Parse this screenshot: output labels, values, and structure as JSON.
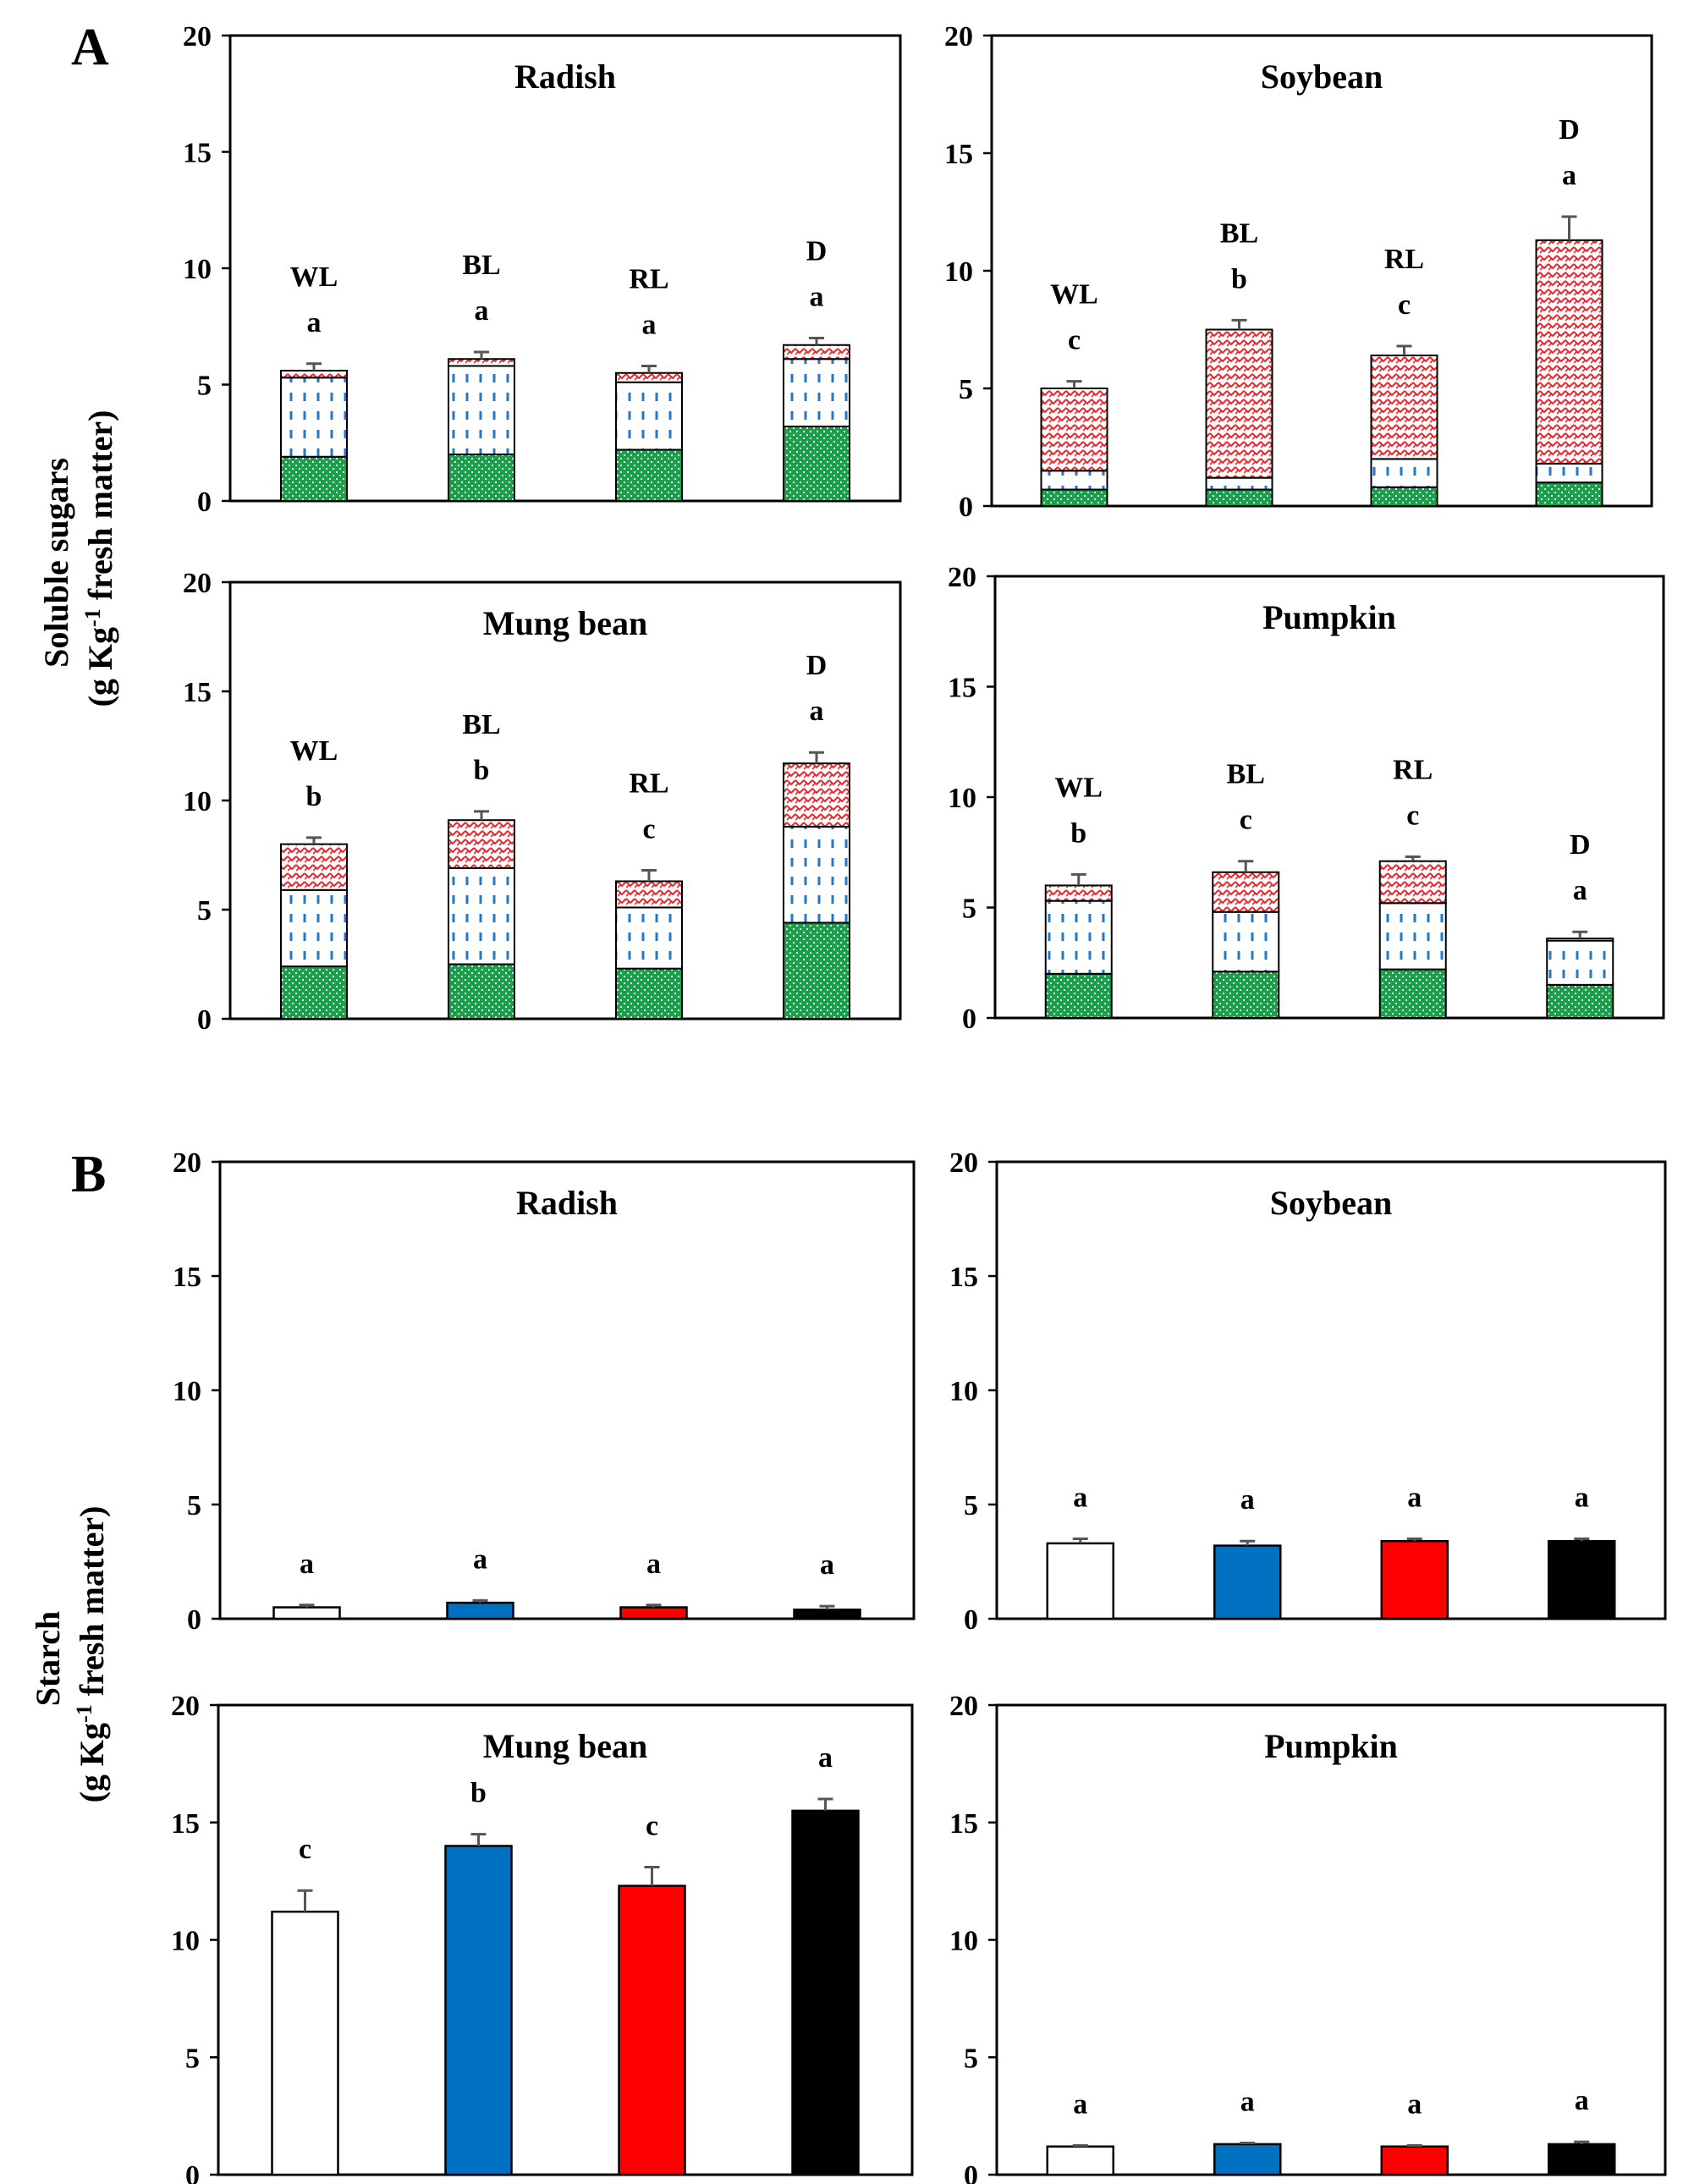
{
  "figure": {
    "panel_a": "A",
    "panel_b": "B",
    "ylabel_a": [
      "Soluble sugars",
      "(g Kg",
      "-1",
      " fresh matter)"
    ],
    "ylabel_b": [
      "Starch",
      "(g Kg",
      "-1",
      " fresh matter)"
    ]
  },
  "colors": {
    "green": "#1aa04a",
    "blue_dash": "#1f78c8",
    "red_pattern": "#e8262c",
    "WL": "#ffffff",
    "BL": "#0070c0",
    "RL": "#ff0000",
    "D": "#000000"
  },
  "chart_data": [
    {
      "id": "A-radish",
      "type": "stacked-bar",
      "title": "Radish",
      "categories": [
        "WL",
        "BL",
        "RL",
        "D"
      ],
      "ylim": [
        0,
        20
      ],
      "yticks": [
        0,
        5,
        10,
        15,
        20
      ],
      "series": [
        {
          "name": "green-segment",
          "values": [
            1.9,
            2.0,
            2.2,
            3.2
          ]
        },
        {
          "name": "blue-segment",
          "values": [
            3.4,
            3.8,
            2.9,
            2.9
          ]
        },
        {
          "name": "red-segment",
          "values": [
            0.3,
            0.3,
            0.4,
            0.6
          ]
        }
      ],
      "error": [
        0.3,
        0.3,
        0.3,
        0.3
      ],
      "category_labels": [
        "WL",
        "BL",
        "RL",
        "D"
      ],
      "letters": [
        "a",
        "a",
        "a",
        "a"
      ]
    },
    {
      "id": "A-soybean",
      "type": "stacked-bar",
      "title": "Soybean",
      "categories": [
        "WL",
        "BL",
        "RL",
        "D"
      ],
      "ylim": [
        0,
        20
      ],
      "yticks": [
        0,
        5,
        10,
        15,
        20
      ],
      "series": [
        {
          "name": "green-segment",
          "values": [
            0.7,
            0.7,
            0.8,
            1.0
          ]
        },
        {
          "name": "blue-segment",
          "values": [
            0.8,
            0.5,
            1.2,
            0.8
          ]
        },
        {
          "name": "red-segment",
          "values": [
            3.5,
            6.3,
            4.4,
            9.5
          ]
        }
      ],
      "error": [
        0.3,
        0.4,
        0.4,
        1.0
      ],
      "category_labels": [
        "WL",
        "BL",
        "RL",
        "D"
      ],
      "letters": [
        "c",
        "b",
        "c",
        "a"
      ]
    },
    {
      "id": "A-mungbean",
      "type": "stacked-bar",
      "title": "Mung bean",
      "categories": [
        "WL",
        "BL",
        "RL",
        "D"
      ],
      "ylim": [
        0,
        20
      ],
      "yticks": [
        0,
        5,
        10,
        15,
        20
      ],
      "series": [
        {
          "name": "green-segment",
          "values": [
            2.4,
            2.5,
            2.3,
            4.4
          ]
        },
        {
          "name": "blue-segment",
          "values": [
            3.5,
            4.4,
            2.8,
            4.4
          ]
        },
        {
          "name": "red-segment",
          "values": [
            2.1,
            2.2,
            1.2,
            2.9
          ]
        }
      ],
      "error": [
        0.3,
        0.4,
        0.5,
        0.5
      ],
      "category_labels": [
        "WL",
        "BL",
        "RL",
        "D"
      ],
      "letters": [
        "b",
        "b",
        "c",
        "a"
      ]
    },
    {
      "id": "A-pumpkin",
      "type": "stacked-bar",
      "title": "Pumpkin",
      "categories": [
        "WL",
        "BL",
        "RL",
        "D"
      ],
      "ylim": [
        0,
        20
      ],
      "yticks": [
        0,
        5,
        10,
        15,
        20
      ],
      "series": [
        {
          "name": "green-segment",
          "values": [
            2.0,
            2.1,
            2.2,
            1.5
          ]
        },
        {
          "name": "blue-segment",
          "values": [
            3.3,
            2.7,
            3.0,
            2.0
          ]
        },
        {
          "name": "red-segment",
          "values": [
            0.7,
            1.8,
            1.9,
            0.1
          ]
        }
      ],
      "error": [
        0.5,
        0.5,
        0.2,
        0.3
      ],
      "category_labels": [
        "WL",
        "BL",
        "RL",
        "D"
      ],
      "letters": [
        "b",
        "c",
        "c",
        "a"
      ]
    },
    {
      "id": "B-radish",
      "type": "bar",
      "title": "Radish",
      "categories": [
        "WL",
        "BL",
        "RL",
        "D"
      ],
      "ylim": [
        0,
        20
      ],
      "yticks": [
        0,
        5,
        10,
        15,
        20
      ],
      "values": [
        0.5,
        0.7,
        0.5,
        0.4
      ],
      "error": [
        0.1,
        0.1,
        0.1,
        0.15
      ],
      "letters": [
        "a",
        "a",
        "a",
        "a"
      ]
    },
    {
      "id": "B-soybean",
      "type": "bar",
      "title": "Soybean",
      "categories": [
        "WL",
        "BL",
        "RL",
        "D"
      ],
      "ylim": [
        0,
        20
      ],
      "yticks": [
        0,
        5,
        10,
        15,
        20
      ],
      "values": [
        3.3,
        3.2,
        3.4,
        3.4
      ],
      "error": [
        0.2,
        0.2,
        0.1,
        0.1
      ],
      "letters": [
        "a",
        "a",
        "a",
        "a"
      ]
    },
    {
      "id": "B-mungbean",
      "type": "bar",
      "title": "Mung bean",
      "categories": [
        "WL",
        "BL",
        "RL",
        "D"
      ],
      "ylim": [
        0,
        20
      ],
      "yticks": [
        0,
        5,
        10,
        15,
        20
      ],
      "values": [
        11.2,
        14.0,
        12.3,
        15.5
      ],
      "error": [
        0.9,
        0.5,
        0.8,
        0.5
      ],
      "letters": [
        "c",
        "b",
        "c",
        "a"
      ]
    },
    {
      "id": "B-pumpkin",
      "type": "bar",
      "title": "Pumpkin",
      "categories": [
        "WL",
        "BL",
        "RL",
        "D"
      ],
      "ylim": [
        0,
        20
      ],
      "yticks": [
        0,
        5,
        10,
        15,
        20
      ],
      "values": [
        1.2,
        1.3,
        1.2,
        1.3
      ],
      "error": [
        0.05,
        0.05,
        0.05,
        0.1
      ],
      "letters": [
        "a",
        "a",
        "a",
        "a"
      ]
    }
  ]
}
